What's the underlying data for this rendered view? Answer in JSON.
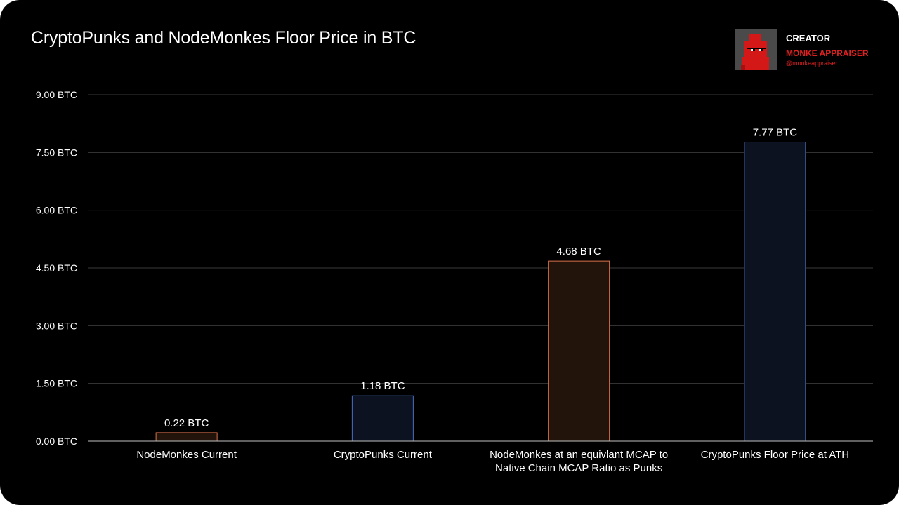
{
  "creator": {
    "label": "CREATOR",
    "name": "MONKE APPRAISER",
    "handle": "@monkeappraiser"
  },
  "colors": {
    "background": "#000000",
    "gridline": "#3a3a3a",
    "nodemonkes_stroke": "#d9704a",
    "nodemonkes_fill": "#22140b",
    "cryptopunks_stroke": "#4b6fc0",
    "cryptopunks_fill": "#0c1220",
    "brand_red": "#e02020"
  },
  "chart_data": {
    "type": "bar",
    "title": "CryptoPunks and NodeMonkes Floor Price in BTC",
    "xlabel": "",
    "ylabel": "",
    "ylim": [
      0,
      9
    ],
    "y_ticks": [
      {
        "value": 0,
        "label": "0.00 BTC"
      },
      {
        "value": 1.5,
        "label": "1.50 BTC"
      },
      {
        "value": 3,
        "label": "3.00 BTC"
      },
      {
        "value": 4.5,
        "label": "4.50 BTC"
      },
      {
        "value": 6,
        "label": "6.00 BTC"
      },
      {
        "value": 7.5,
        "label": "7.50 BTC"
      },
      {
        "value": 9,
        "label": "9.00 BTC"
      }
    ],
    "grid": true,
    "categories": [
      [
        "NodeMonkes Current"
      ],
      [
        "CryptoPunks Current"
      ],
      [
        "NodeMonkes at an equivlant MCAP to",
        "Native Chain MCAP Ratio as Punks"
      ],
      [
        "CryptoPunks Floor Price at ATH"
      ]
    ],
    "values": [
      0.22,
      1.18,
      4.68,
      7.77
    ],
    "value_labels": [
      "0.22 BTC",
      "1.18 BTC",
      "4.68 BTC",
      "7.77 BTC"
    ],
    "bar_collection": [
      "nodemonkes",
      "cryptopunks",
      "nodemonkes",
      "cryptopunks"
    ]
  }
}
